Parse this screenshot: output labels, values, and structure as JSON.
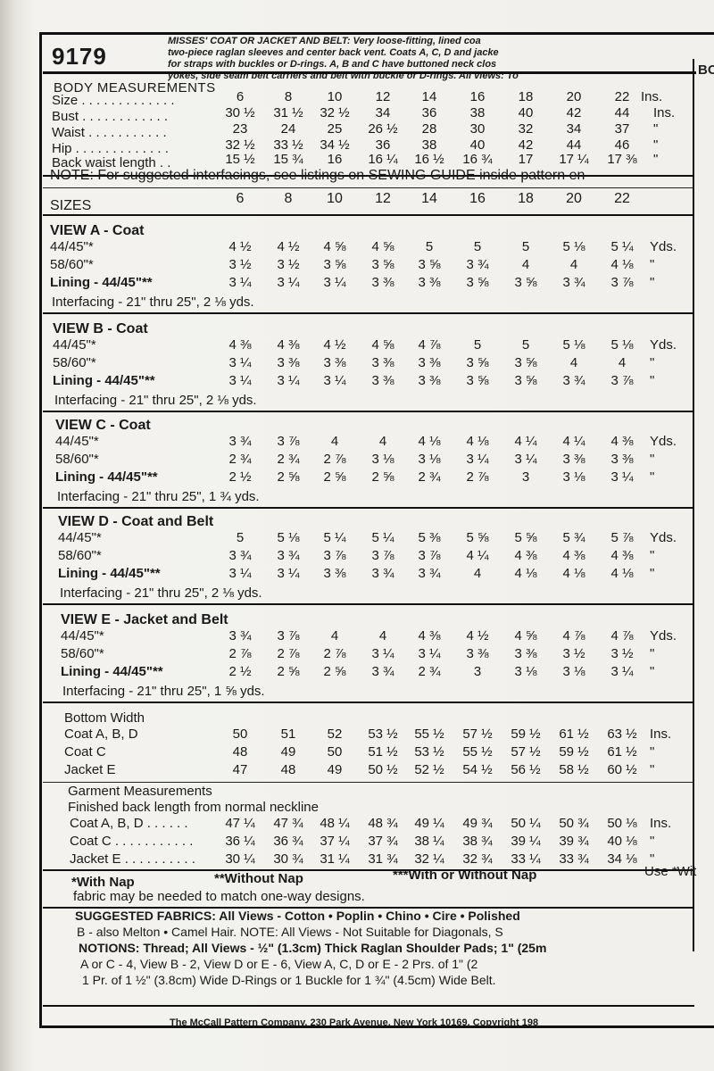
{
  "pattern_number": "9179",
  "header_lines": [
    "MISSES' COAT OR JACKET AND BELT: Very loose-fitting, lined coa",
    "two-piece raglan sleeves and center back vent. Coats A, C, D and jacke",
    "for straps with buckles or D-rings. A, B and C have buttoned neck clos",
    "yokes, side seam belt carriers and belt with buckle or D-rings. All views: To"
  ],
  "side_right": "BO",
  "body_measurements": {
    "title": "BODY MEASUREMENTS",
    "unit": "Ins.",
    "rows": [
      {
        "label": "Size . . . . . . . . . . . . .",
        "values": [
          "6",
          "8",
          "10",
          "12",
          "14",
          "16",
          "18",
          "20",
          "22"
        ],
        "unit": "Ins."
      },
      {
        "label": "Bust . . . . . . . . . . . .",
        "values": [
          "30 ½",
          "31 ½",
          "32 ½",
          "34",
          "36",
          "38",
          "40",
          "42",
          "44"
        ],
        "unit": "Ins."
      },
      {
        "label": "Waist . . . . . . . . . . .",
        "values": [
          "23",
          "24",
          "25",
          "26 ½",
          "28",
          "30",
          "32",
          "34",
          "37"
        ],
        "unit": "\""
      },
      {
        "label": "Hip . . . . . . . . . . . . .",
        "values": [
          "32 ½",
          "33 ½",
          "34 ½",
          "36",
          "38",
          "40",
          "42",
          "44",
          "46"
        ],
        "unit": "\""
      },
      {
        "label": "Back waist length . .",
        "values": [
          "15 ½",
          "15 ¾",
          "16",
          "16 ¼",
          "16 ½",
          "16 ¾",
          "17",
          "17 ¼",
          "17 ⅜"
        ],
        "unit": "\""
      }
    ]
  },
  "note": "NOTE: For suggested interfacings, see listings on SEWING GUIDE inside pattern en",
  "sizes_label": "SIZES",
  "sizes": [
    "6",
    "8",
    "10",
    "12",
    "14",
    "16",
    "18",
    "20",
    "22"
  ],
  "views": [
    {
      "title": "VIEW A - Coat",
      "rows": [
        {
          "label": "44/45\"*",
          "values": [
            "4 ½",
            "4 ½",
            "4 ⅝",
            "4 ⅝",
            "5",
            "5",
            "5",
            "5 ⅛",
            "5 ¼"
          ],
          "unit": "Yds."
        },
        {
          "label": "58/60\"*",
          "values": [
            "3 ½",
            "3 ½",
            "3 ⅝",
            "3 ⅝",
            "3 ⅝",
            "3 ¾",
            "4",
            "4",
            "4 ⅛"
          ],
          "unit": "\""
        },
        {
          "label": "Lining - 44/45\"**",
          "values": [
            "3 ¼",
            "3 ¼",
            "3 ¼",
            "3 ⅜",
            "3 ⅜",
            "3 ⅝",
            "3 ⅝",
            "3 ¾",
            "3 ⅞"
          ],
          "unit": "\""
        }
      ],
      "interfacing": "Interfacing - 21\" thru 25\", 2 ⅛ yds."
    },
    {
      "title": "VIEW B - Coat",
      "rows": [
        {
          "label": "44/45\"*",
          "values": [
            "4 ⅜",
            "4 ⅜",
            "4 ½",
            "4 ⅝",
            "4 ⅞",
            "5",
            "5",
            "5 ⅛",
            "5 ⅛"
          ],
          "unit": "Yds."
        },
        {
          "label": "58/60\"*",
          "values": [
            "3 ¼",
            "3 ⅜",
            "3 ⅜",
            "3 ⅜",
            "3 ⅜",
            "3 ⅝",
            "3 ⅝",
            "4",
            "4"
          ],
          "unit": "\""
        },
        {
          "label": "Lining - 44/45\"**",
          "values": [
            "3 ¼",
            "3 ¼",
            "3 ¼",
            "3 ⅜",
            "3 ⅜",
            "3 ⅝",
            "3 ⅝",
            "3 ¾",
            "3 ⅞"
          ],
          "unit": "\""
        }
      ],
      "interfacing": "Interfacing - 21\" thru 25\", 2 ⅛ yds."
    },
    {
      "title": "VIEW C - Coat",
      "rows": [
        {
          "label": "44/45\"*",
          "values": [
            "3 ¾",
            "3 ⅞",
            "4",
            "4",
            "4 ⅛",
            "4 ⅛",
            "4 ¼",
            "4 ¼",
            "4 ⅜"
          ],
          "unit": "Yds."
        },
        {
          "label": "58/60\"*",
          "values": [
            "2 ¾",
            "2 ¾",
            "2 ⅞",
            "3 ⅛",
            "3 ⅛",
            "3 ¼",
            "3 ¼",
            "3 ⅜",
            "3 ⅜"
          ],
          "unit": "\""
        },
        {
          "label": "Lining - 44/45\"**",
          "values": [
            "2 ½",
            "2 ⅝",
            "2 ⅝",
            "2 ⅝",
            "2 ¾",
            "2 ⅞",
            "3",
            "3 ⅛",
            "3 ¼"
          ],
          "unit": "\""
        }
      ],
      "interfacing": "Interfacing - 21\" thru 25\", 1 ¾ yds."
    },
    {
      "title": "VIEW D - Coat and Belt",
      "rows": [
        {
          "label": "44/45\"*",
          "values": [
            "5",
            "5 ⅛",
            "5 ¼",
            "5 ¼",
            "5 ⅜",
            "5 ⅝",
            "5 ⅝",
            "5 ¾",
            "5 ⅞"
          ],
          "unit": "Yds."
        },
        {
          "label": "58/60\"*",
          "values": [
            "3 ¾",
            "3 ¾",
            "3 ⅞",
            "3 ⅞",
            "3 ⅞",
            "4 ¼",
            "4 ⅜",
            "4 ⅜",
            "4 ⅜"
          ],
          "unit": "\""
        },
        {
          "label": "Lining - 44/45\"**",
          "values": [
            "3 ¼",
            "3 ¼",
            "3 ⅜",
            "3 ¾",
            "3 ¾",
            "4",
            "4 ⅛",
            "4 ⅛",
            "4 ⅛"
          ],
          "unit": "\""
        }
      ],
      "interfacing": "Interfacing - 21\" thru 25\", 2 ⅛ yds."
    },
    {
      "title": "VIEW E - Jacket and Belt",
      "rows": [
        {
          "label": "44/45\"*",
          "values": [
            "3 ¾",
            "3 ⅞",
            "4",
            "4",
            "4 ⅜",
            "4 ½",
            "4 ⅝",
            "4 ⅞",
            "4 ⅞"
          ],
          "unit": "Yds."
        },
        {
          "label": "58/60\"*",
          "values": [
            "2 ⅞",
            "2 ⅞",
            "2 ⅞",
            "3 ¼",
            "3 ¼",
            "3 ⅜",
            "3 ⅜",
            "3 ½",
            "3 ½"
          ],
          "unit": "\""
        },
        {
          "label": "Lining - 44/45\"**",
          "values": [
            "2 ½",
            "2 ⅝",
            "2 ⅝",
            "3 ¾",
            "2 ¾",
            "3",
            "3 ⅛",
            "3 ⅛",
            "3 ¼"
          ],
          "unit": "\""
        }
      ],
      "interfacing": "Interfacing - 21\" thru 25\", 1 ⅝ yds."
    }
  ],
  "bottom_width": {
    "title": "Bottom Width",
    "rows": [
      {
        "label": "Coat A, B, D",
        "values": [
          "50",
          "51",
          "52",
          "53 ½",
          "55 ½",
          "57 ½",
          "59 ½",
          "61 ½",
          "63 ½"
        ],
        "unit": "Ins."
      },
      {
        "label": "Coat C",
        "values": [
          "48",
          "49",
          "50",
          "51 ½",
          "53 ½",
          "55 ½",
          "57 ½",
          "59 ½",
          "61 ½"
        ],
        "unit": "\""
      },
      {
        "label": "Jacket E",
        "values": [
          "47",
          "48",
          "49",
          "50 ½",
          "52 ½",
          "54 ½",
          "56 ½",
          "58 ½",
          "60 ½"
        ],
        "unit": "\""
      }
    ]
  },
  "garment_measurements": {
    "title": "Garment Measurements",
    "subtitle": "Finished back length from normal neckline",
    "rows": [
      {
        "label": "Coat A, B, D . . . . . .",
        "values": [
          "47 ¼",
          "47 ¾",
          "48 ¼",
          "48 ¾",
          "49 ¼",
          "49 ¾",
          "50 ¼",
          "50 ¾",
          "50 ⅛"
        ],
        "unit": "Ins."
      },
      {
        "label": "Coat C . . . . . . . . . . .",
        "values": [
          "36 ¼",
          "36 ¾",
          "37 ¼",
          "37 ¾",
          "38 ¼",
          "38 ¾",
          "39 ¼",
          "39 ¾",
          "40 ⅛"
        ],
        "unit": "\""
      },
      {
        "label": "Jacket E . . . . . . . . . .",
        "values": [
          "30 ¼",
          "30 ¾",
          "31 ¼",
          "31 ¾",
          "32 ¼",
          "32 ¾",
          "33 ¼",
          "33 ¾",
          "34 ⅛"
        ],
        "unit": "\""
      }
    ]
  },
  "nap_legend": {
    "with": "*With Nap",
    "without": "**Without Nap",
    "either": "***With or Without Nap",
    "use": "Use *Wit"
  },
  "nap_note": "fabric may be needed to match one-way designs.",
  "fabrics_lines": [
    "SUGGESTED FABRICS: All Views - Cotton • Poplin • Chino • Cire • Polished",
    "B - also Melton • Camel Hair. NOTE: All Views - Not Suitable for Diagonals, S",
    "NOTIONS: Thread; All Views - ½\" (1.3cm) Thick Raglan Shoulder Pads; 1\" (25m",
    "A or C - 4, View B - 2, View D or E - 6, View A, C, D or E - 2 Prs. of 1\" (2",
    "1 Pr. of 1 ½\" (3.8cm) Wide D-Rings or 1 Buckle for 1 ¾\" (4.5cm) Wide Belt."
  ],
  "footer": "The McCall Pattern Company, 230 Park Avenue, New York 10169, Copyright 198"
}
